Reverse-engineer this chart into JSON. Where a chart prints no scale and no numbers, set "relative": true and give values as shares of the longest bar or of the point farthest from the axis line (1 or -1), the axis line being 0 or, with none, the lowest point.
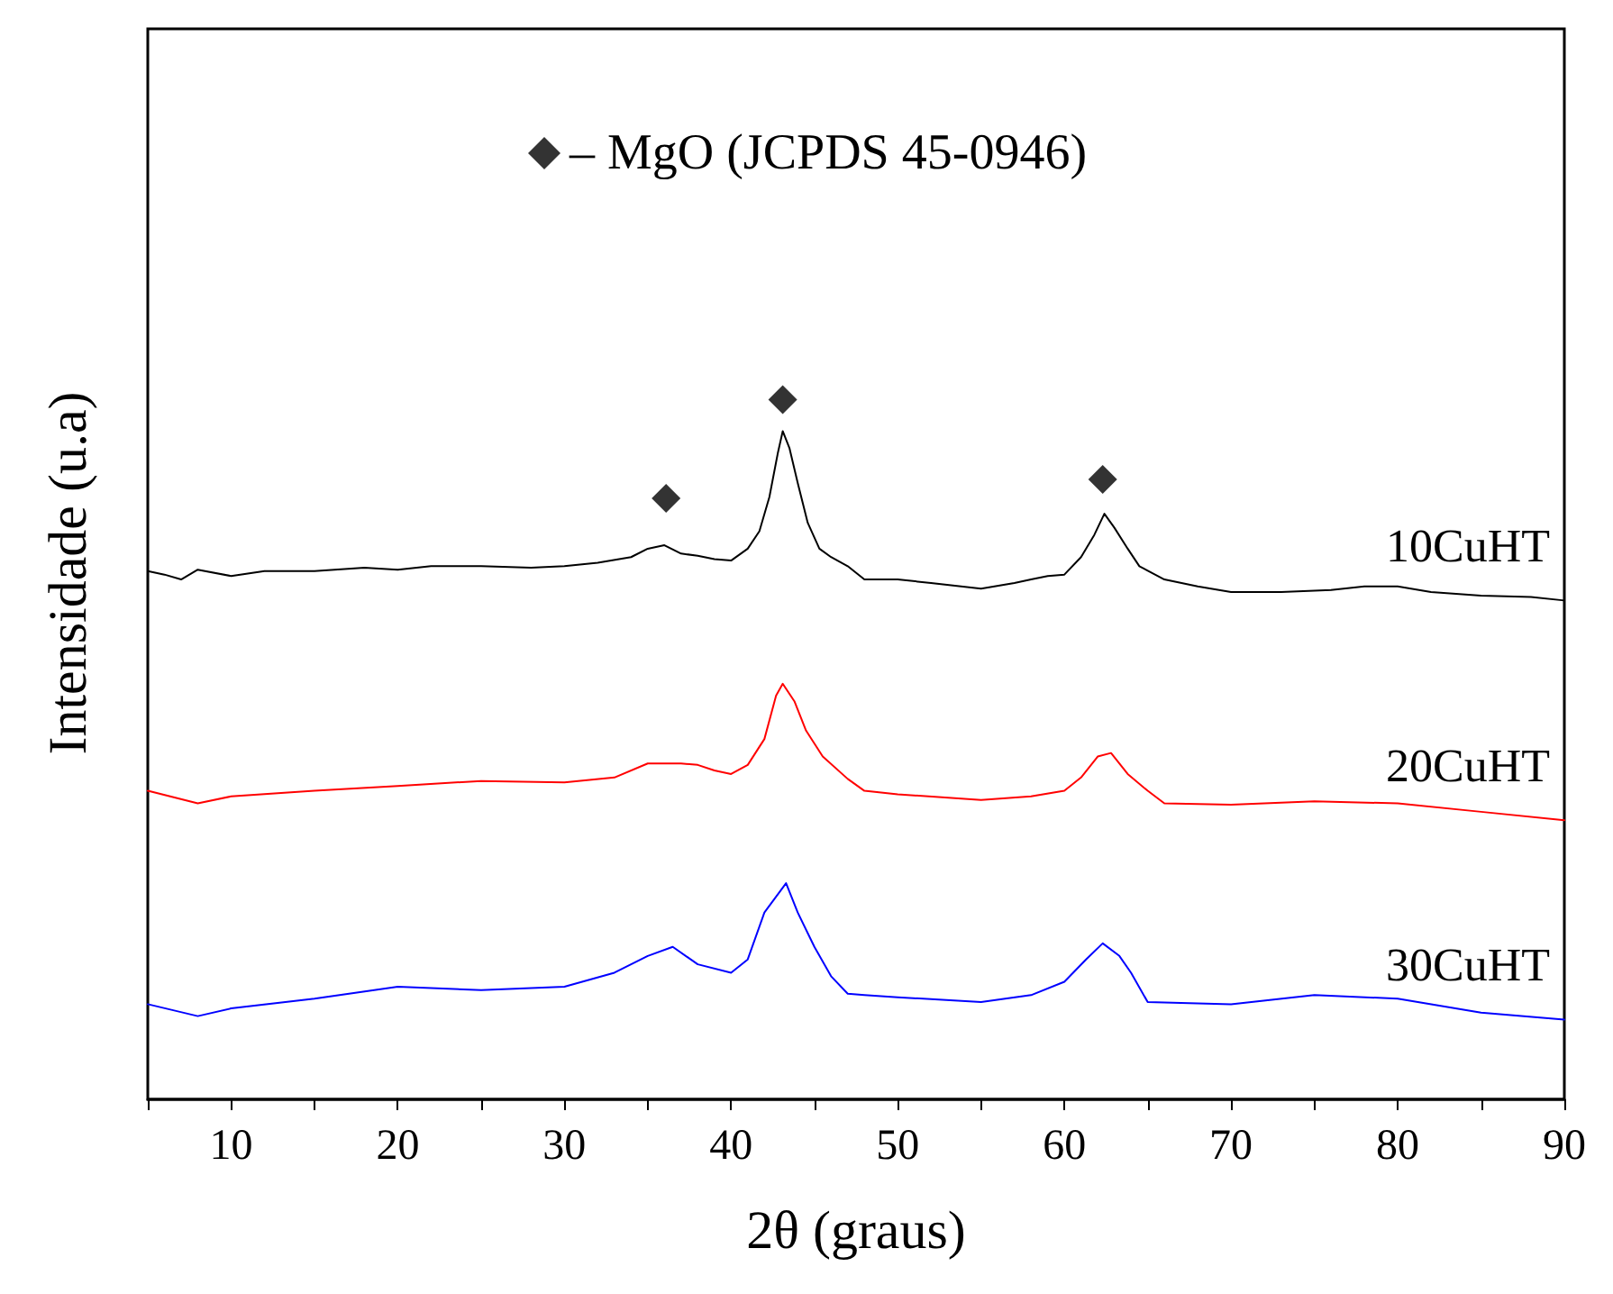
{
  "chart_data": {
    "type": "line",
    "relative": true,
    "xlabel": "2θ (graus)",
    "ylabel": "Intensidade (u.a)",
    "xlim": [
      5,
      90
    ],
    "xticks": [
      {
        "value": 5,
        "label": null
      },
      10,
      {
        "value": 15,
        "label": null
      },
      20,
      {
        "value": 25,
        "label": null
      },
      30,
      {
        "value": 35,
        "label": null
      },
      40,
      {
        "value": 45,
        "label": null
      },
      50,
      {
        "value": 55,
        "label": null
      },
      60,
      {
        "value": 65,
        "label": null
      },
      70,
      {
        "value": 75,
        "label": null
      },
      80,
      {
        "value": 85,
        "label": null
      },
      90
    ],
    "grid": false,
    "legend": "top",
    "marker": "none",
    "line_style": "solid",
    "series": [
      {
        "name": "10CuHT",
        "color": "#000000",
        "x": [
          5,
          6,
          7,
          8,
          10,
          12,
          15,
          18,
          20,
          22,
          25,
          28,
          30,
          32,
          34,
          35,
          36,
          37,
          38,
          39,
          40,
          41,
          41.7,
          42.3,
          42.8,
          43.1,
          43.5,
          44,
          44.6,
          45.3,
          46,
          47,
          48,
          50,
          52,
          55,
          57,
          58,
          59,
          60,
          61,
          61.8,
          62.4,
          63,
          63.8,
          64.5,
          66,
          68,
          70,
          73,
          76,
          78,
          80,
          82,
          85,
          88,
          90
        ],
        "values": [
          0.755,
          0.75,
          0.743,
          0.757,
          0.748,
          0.755,
          0.755,
          0.76,
          0.757,
          0.762,
          0.762,
          0.76,
          0.762,
          0.767,
          0.775,
          0.787,
          0.792,
          0.78,
          0.777,
          0.772,
          0.77,
          0.787,
          0.812,
          0.861,
          0.923,
          0.955,
          0.931,
          0.881,
          0.824,
          0.787,
          0.775,
          0.762,
          0.743,
          0.743,
          0.738,
          0.73,
          0.738,
          0.743,
          0.748,
          0.75,
          0.775,
          0.807,
          0.837,
          0.817,
          0.787,
          0.762,
          0.743,
          0.733,
          0.725,
          0.725,
          0.728,
          0.733,
          0.733,
          0.725,
          0.72,
          0.718,
          0.713
        ]
      },
      {
        "name": "20CuHT",
        "color": "#ff0000",
        "x": [
          5,
          8,
          10,
          15,
          20,
          25,
          30,
          33,
          35,
          37,
          38,
          39,
          40,
          41,
          42,
          42.7,
          43.1,
          43.8,
          44.5,
          45.5,
          47,
          48,
          50,
          55,
          58,
          60,
          61,
          62,
          62.8,
          63.8,
          65,
          66,
          70,
          75,
          80,
          85,
          90
        ],
        "values": [
          0.441,
          0.423,
          0.433,
          0.441,
          0.448,
          0.455,
          0.453,
          0.46,
          0.48,
          0.48,
          0.478,
          0.47,
          0.465,
          0.478,
          0.515,
          0.577,
          0.594,
          0.569,
          0.527,
          0.49,
          0.458,
          0.441,
          0.436,
          0.428,
          0.433,
          0.441,
          0.46,
          0.49,
          0.495,
          0.465,
          0.441,
          0.423,
          0.421,
          0.426,
          0.423,
          0.411,
          0.399
        ]
      },
      {
        "name": "30CuHT",
        "color": "#0000ff",
        "x": [
          5,
          8,
          10,
          15,
          20,
          25,
          30,
          33,
          35,
          36.5,
          38,
          40,
          41,
          42,
          43.3,
          44,
          45,
          46,
          47,
          48,
          50,
          55,
          58,
          60,
          61.3,
          62.3,
          63.3,
          64,
          65,
          70,
          75,
          80,
          85,
          90
        ],
        "values": [
          0.136,
          0.119,
          0.13,
          0.144,
          0.161,
          0.156,
          0.161,
          0.181,
          0.205,
          0.218,
          0.193,
          0.181,
          0.2,
          0.267,
          0.309,
          0.267,
          0.218,
          0.176,
          0.151,
          0.149,
          0.146,
          0.139,
          0.149,
          0.168,
          0.2,
          0.223,
          0.205,
          0.181,
          0.139,
          0.136,
          0.149,
          0.144,
          0.124,
          0.114
        ]
      },
      {
        "name": "– MgO (JCPDS 45-0946)",
        "type": "scatter",
        "marker": "diamond",
        "color": "#000000",
        "x": [
          36.1,
          43.1,
          62.3
        ],
        "values": [
          0.859,
          1.0,
          0.886
        ]
      }
    ]
  }
}
